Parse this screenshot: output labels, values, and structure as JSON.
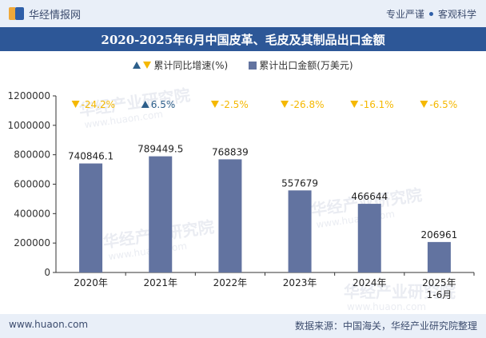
{
  "header": {
    "brand_name": "华经情报网",
    "tag_left": "专业严谨",
    "tag_right": "客观科学",
    "title": "2020-2025年6月中国皮革、毛皮及其制品出口金额"
  },
  "legend": {
    "growth_label": "累计同比增速(%)",
    "export_label": "累计出口金额(万美元)"
  },
  "watermark": "华经产业研究院",
  "watermark_url": "www.huaon.com",
  "colors": {
    "bar": "#6273a0",
    "up": "#2d5f8a",
    "down": "#f5b800",
    "title_bg": "#2d5797"
  },
  "chart_data": {
    "type": "bar",
    "title": "2020-2025年6月中国皮革、毛皮及其制品出口金额",
    "categories": [
      "2020年",
      "2021年",
      "2022年",
      "2023年",
      "2024年",
      "2025年\n1-6月"
    ],
    "series": [
      {
        "name": "累计出口金额(万美元)",
        "values": [
          740846.1,
          789449.5,
          768839,
          557679,
          466644,
          206961
        ],
        "labels": [
          "740846.1",
          "789449.5",
          "768839",
          "557679",
          "466644",
          "206961"
        ]
      },
      {
        "name": "累计同比增速(%)",
        "values": [
          -24.2,
          6.5,
          -2.5,
          -26.8,
          -16.1,
          -6.5
        ],
        "labels": [
          "-24.2%",
          "6.5%",
          "-2.5%",
          "-26.8%",
          "-16.1%",
          "-6.5%"
        ]
      }
    ],
    "yticks": [
      "0",
      "200000",
      "400000",
      "600000",
      "800000",
      "1000000",
      "1200000"
    ],
    "ylim": [
      0,
      1200000
    ],
    "grid": false,
    "legend_position": "top-center"
  },
  "footer": {
    "site": "www.huaon.com",
    "source": "数据来源：中国海关，华经产业研究院整理"
  }
}
